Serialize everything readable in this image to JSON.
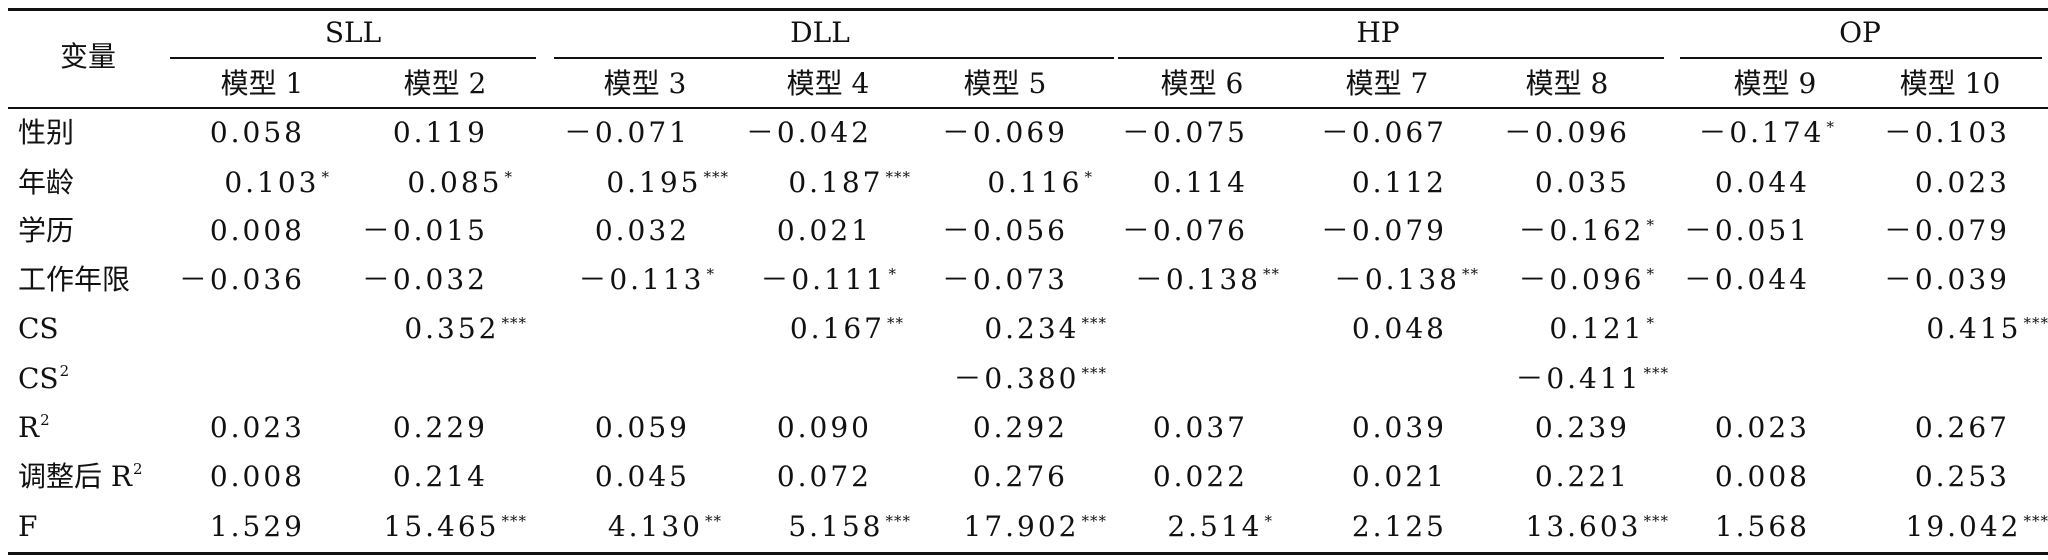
{
  "header": {
    "variable_label": "变量",
    "groups": [
      "SLL",
      "DLL",
      "HP",
      "OP"
    ],
    "models": [
      "模型 1",
      "模型 2",
      "模型 3",
      "模型 4",
      "模型 5",
      "模型 6",
      "模型 7",
      "模型 8",
      "模型 9",
      "模型 10"
    ]
  },
  "rows": [
    {
      "label": "性别",
      "label_sup": "",
      "cells": [
        [
          "0.058",
          ""
        ],
        [
          "0.119",
          ""
        ],
        [
          "－0.071",
          ""
        ],
        [
          "－0.042",
          ""
        ],
        [
          "－0.069",
          ""
        ],
        [
          "－0.075",
          ""
        ],
        [
          "－0.067",
          ""
        ],
        [
          "－0.096",
          ""
        ],
        [
          "－0.174",
          "*"
        ],
        [
          "－0.103",
          ""
        ]
      ]
    },
    {
      "label": "年龄",
      "label_sup": "",
      "cells": [
        [
          "0.103",
          "*"
        ],
        [
          "0.085",
          "*"
        ],
        [
          "0.195",
          "***"
        ],
        [
          "0.187",
          "***"
        ],
        [
          "0.116",
          "*"
        ],
        [
          "0.114",
          ""
        ],
        [
          "0.112",
          ""
        ],
        [
          "0.035",
          ""
        ],
        [
          "0.044",
          ""
        ],
        [
          "0.023",
          ""
        ]
      ]
    },
    {
      "label": "学历",
      "label_sup": "",
      "cells": [
        [
          "0.008",
          ""
        ],
        [
          "－0.015",
          ""
        ],
        [
          "0.032",
          ""
        ],
        [
          "0.021",
          ""
        ],
        [
          "－0.056",
          ""
        ],
        [
          "－0.076",
          ""
        ],
        [
          "－0.079",
          ""
        ],
        [
          "－0.162",
          "*"
        ],
        [
          "－0.051",
          ""
        ],
        [
          "－0.079",
          ""
        ]
      ]
    },
    {
      "label": "工作年限",
      "label_sup": "",
      "cells": [
        [
          "－0.036",
          ""
        ],
        [
          "－0.032",
          ""
        ],
        [
          "－0.113",
          "*"
        ],
        [
          "－0.111",
          "*"
        ],
        [
          "－0.073",
          ""
        ],
        [
          "－0.138",
          "**"
        ],
        [
          "－0.138",
          "**"
        ],
        [
          "－0.096",
          "*"
        ],
        [
          "－0.044",
          ""
        ],
        [
          "－0.039",
          ""
        ]
      ]
    },
    {
      "label": "CS",
      "label_sup": "",
      "cells": [
        [
          "",
          ""
        ],
        [
          "0.352",
          "***"
        ],
        [
          "",
          ""
        ],
        [
          "0.167",
          "**"
        ],
        [
          "0.234",
          "***"
        ],
        [
          "",
          ""
        ],
        [
          "0.048",
          ""
        ],
        [
          "0.121",
          "*"
        ],
        [
          "",
          ""
        ],
        [
          "0.415",
          "***"
        ]
      ]
    },
    {
      "label": "CS",
      "label_sup": "2",
      "cells": [
        [
          "",
          ""
        ],
        [
          "",
          ""
        ],
        [
          "",
          ""
        ],
        [
          "",
          ""
        ],
        [
          "－0.380",
          "***"
        ],
        [
          "",
          ""
        ],
        [
          "",
          ""
        ],
        [
          "－0.411",
          "***"
        ],
        [
          "",
          ""
        ],
        [
          "",
          ""
        ]
      ]
    },
    {
      "label": "R",
      "label_sup": "2",
      "cells": [
        [
          "0.023",
          ""
        ],
        [
          "0.229",
          ""
        ],
        [
          "0.059",
          ""
        ],
        [
          "0.090",
          ""
        ],
        [
          "0.292",
          ""
        ],
        [
          "0.037",
          ""
        ],
        [
          "0.039",
          ""
        ],
        [
          "0.239",
          ""
        ],
        [
          "0.023",
          ""
        ],
        [
          "0.267",
          ""
        ]
      ]
    },
    {
      "label": "调整后 R",
      "label_sup": "2",
      "cells": [
        [
          "0.008",
          ""
        ],
        [
          "0.214",
          ""
        ],
        [
          "0.045",
          ""
        ],
        [
          "0.072",
          ""
        ],
        [
          "0.276",
          ""
        ],
        [
          "0.022",
          ""
        ],
        [
          "0.021",
          ""
        ],
        [
          "0.221",
          ""
        ],
        [
          "0.008",
          ""
        ],
        [
          "0.253",
          ""
        ]
      ]
    },
    {
      "label": "F",
      "label_sup": "",
      "cells": [
        [
          "1.529",
          ""
        ],
        [
          "15.465",
          "***"
        ],
        [
          "4.130",
          "**"
        ],
        [
          "5.158",
          "***"
        ],
        [
          "17.902",
          "***"
        ],
        [
          "2.514",
          "*"
        ],
        [
          "2.125",
          ""
        ],
        [
          "13.603",
          "***"
        ],
        [
          "1.568",
          ""
        ],
        [
          "19.042",
          "***"
        ]
      ]
    }
  ]
}
